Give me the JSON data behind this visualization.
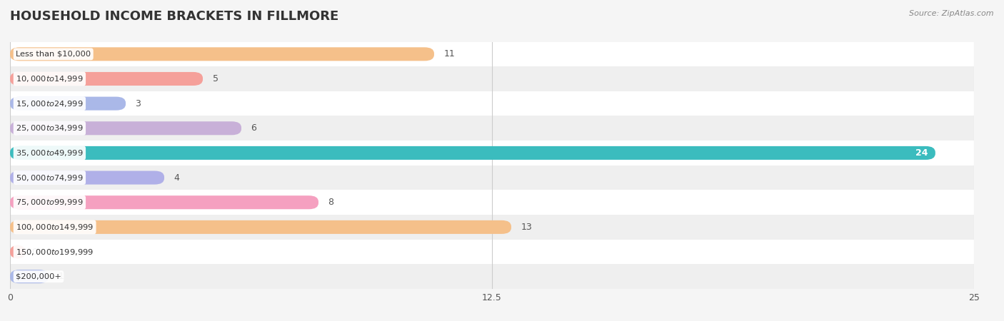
{
  "title": "HOUSEHOLD INCOME BRACKETS IN FILLMORE",
  "source": "Source: ZipAtlas.com",
  "categories": [
    "Less than $10,000",
    "$10,000 to $14,999",
    "$15,000 to $24,999",
    "$25,000 to $34,999",
    "$35,000 to $49,999",
    "$50,000 to $74,999",
    "$75,000 to $99,999",
    "$100,000 to $149,999",
    "$150,000 to $199,999",
    "$200,000+"
  ],
  "values": [
    11,
    5,
    3,
    6,
    24,
    4,
    8,
    13,
    0,
    1
  ],
  "bar_colors": [
    "#f5c08a",
    "#f5a09a",
    "#aab8e8",
    "#c8b0d8",
    "#3bbcbe",
    "#b0b0e8",
    "#f5a0c0",
    "#f5c08a",
    "#f5a09a",
    "#aab8e8"
  ],
  "xlim": [
    0,
    25
  ],
  "xticks": [
    0,
    12.5,
    25
  ],
  "bar_height": 0.55,
  "background_color": "#f5f5f5",
  "row_colors": [
    "#ffffff",
    "#efefef"
  ],
  "title_color": "#333333",
  "value_color_inside": "#ffffff",
  "value_color_outside": "#555555"
}
